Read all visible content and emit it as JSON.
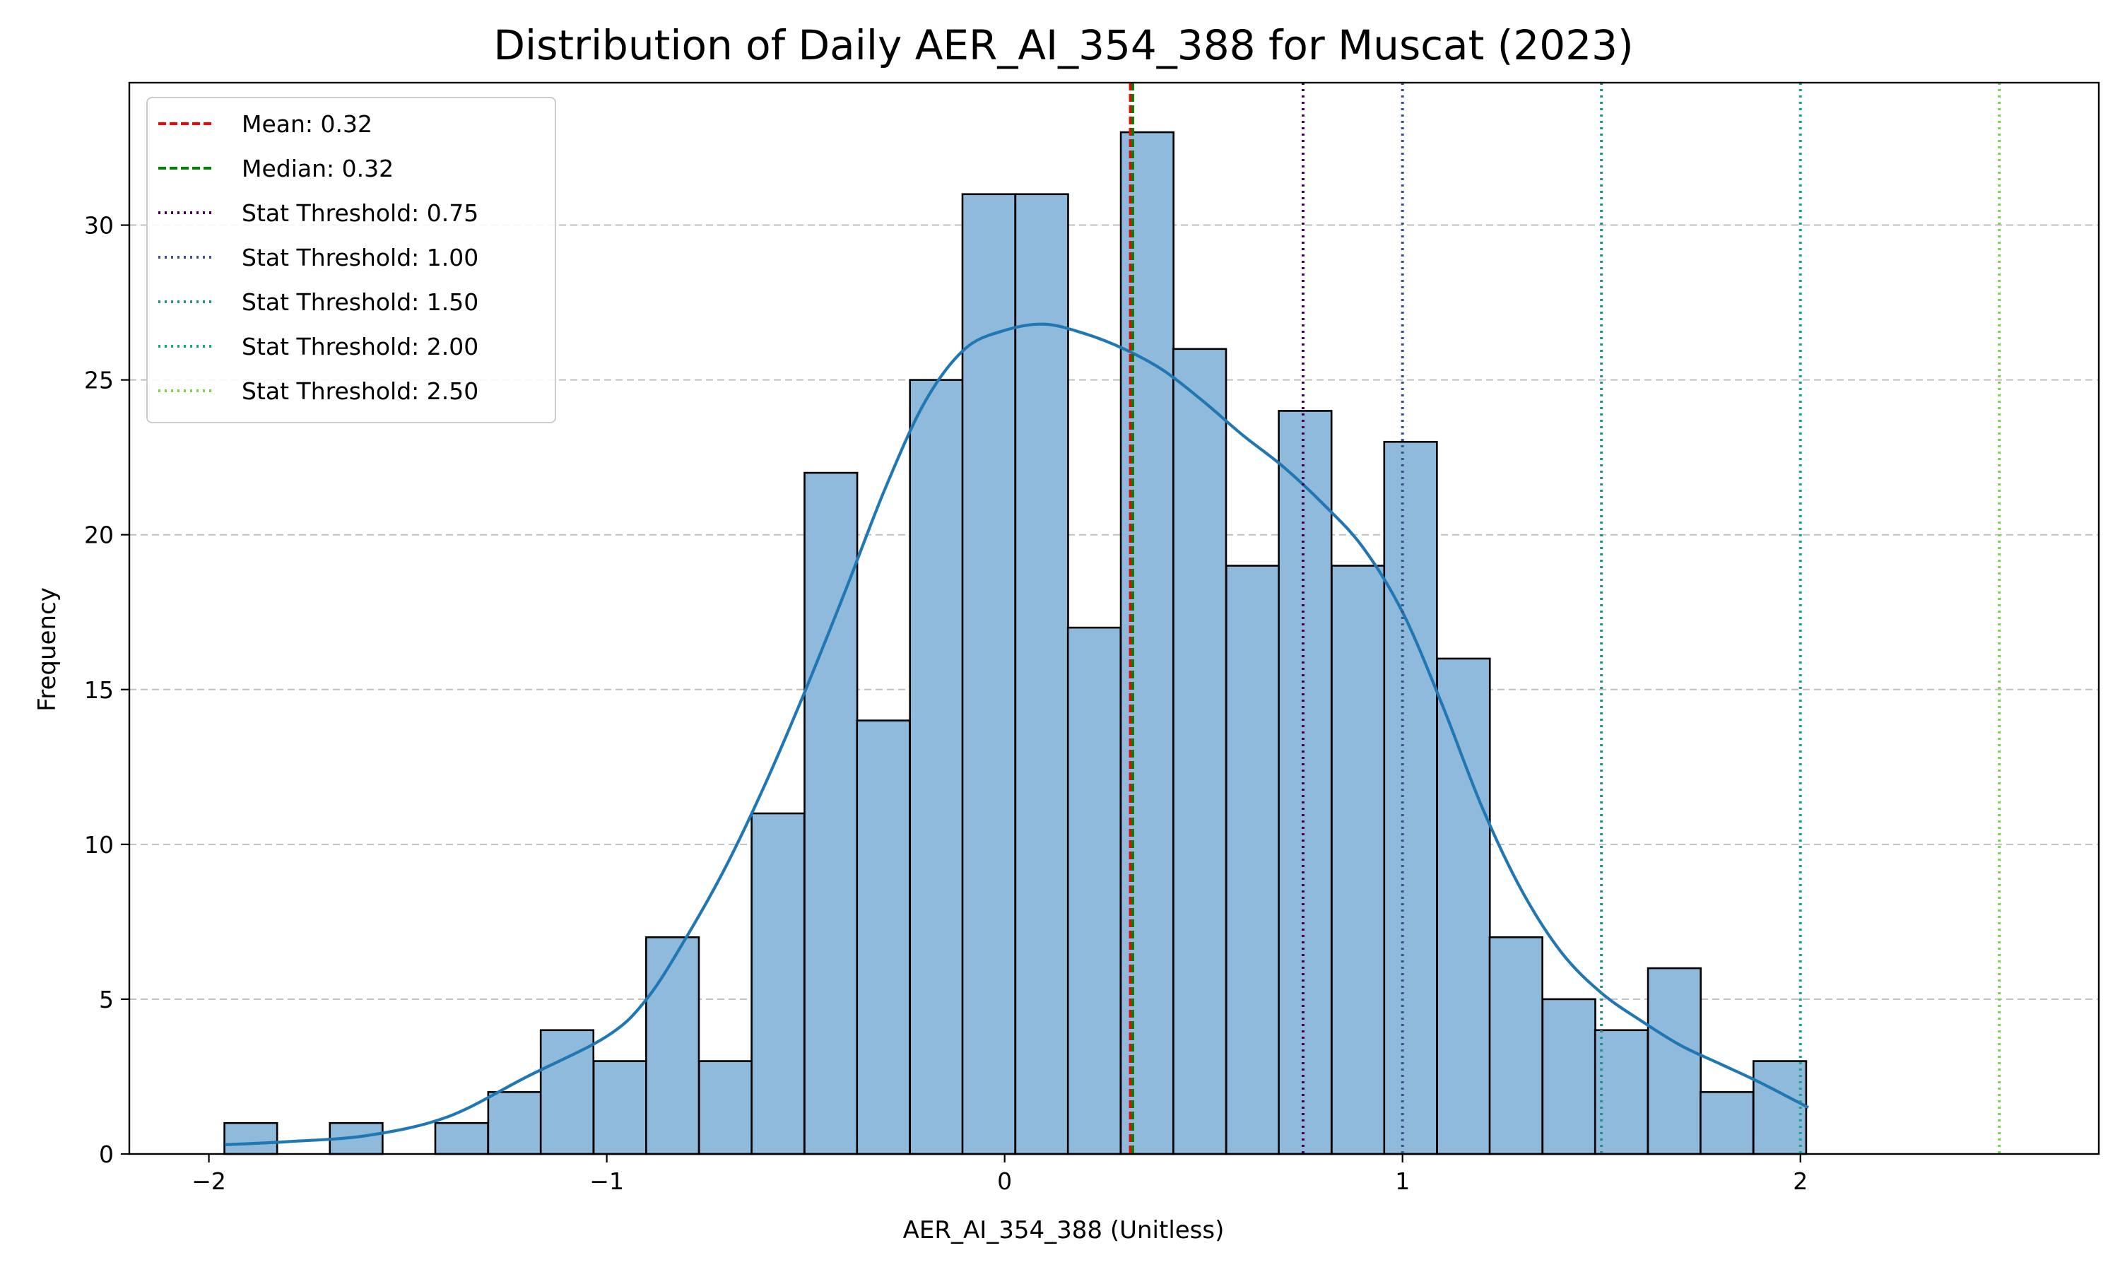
{
  "chart_data": {
    "type": "bar",
    "title": "Distribution of Daily AER_AI_354_388 for Muscat (2023)",
    "xlabel": "AER_AI_354_388 (Unitless)",
    "ylabel": "Frequency",
    "xlim": [
      -2.2,
      2.75
    ],
    "ylim": [
      0,
      34.6
    ],
    "xticks": [
      -2,
      -1,
      0,
      1,
      2
    ],
    "xtick_labels": [
      "−2",
      "−1",
      "0",
      "1",
      "2"
    ],
    "yticks": [
      0,
      5,
      10,
      15,
      20,
      25,
      30
    ],
    "ytick_labels": [
      "0",
      "5",
      "10",
      "15",
      "20",
      "25",
      "30"
    ],
    "grid": "y-dashed",
    "legend_position": "top-left",
    "bin_width": 0.1325,
    "bins": [
      {
        "start": -1.961,
        "count": 1
      },
      {
        "start": -1.828,
        "count": 0
      },
      {
        "start": -1.696,
        "count": 1
      },
      {
        "start": -1.563,
        "count": 0
      },
      {
        "start": -1.431,
        "count": 1
      },
      {
        "start": -1.298,
        "count": 2
      },
      {
        "start": -1.166,
        "count": 4
      },
      {
        "start": -1.033,
        "count": 3
      },
      {
        "start": -0.901,
        "count": 7
      },
      {
        "start": -0.768,
        "count": 3
      },
      {
        "start": -0.636,
        "count": 11
      },
      {
        "start": -0.503,
        "count": 22
      },
      {
        "start": -0.371,
        "count": 14
      },
      {
        "start": -0.238,
        "count": 25
      },
      {
        "start": -0.106,
        "count": 31
      },
      {
        "start": 0.027,
        "count": 31
      },
      {
        "start": 0.159,
        "count": 17
      },
      {
        "start": 0.292,
        "count": 33
      },
      {
        "start": 0.424,
        "count": 26
      },
      {
        "start": 0.557,
        "count": 19
      },
      {
        "start": 0.689,
        "count": 24
      },
      {
        "start": 0.822,
        "count": 19
      },
      {
        "start": 0.954,
        "count": 23
      },
      {
        "start": 1.087,
        "count": 16
      },
      {
        "start": 1.219,
        "count": 7
      },
      {
        "start": 1.352,
        "count": 5
      },
      {
        "start": 1.484,
        "count": 4
      },
      {
        "start": 1.617,
        "count": 6
      },
      {
        "start": 1.749,
        "count": 2
      },
      {
        "start": 1.882,
        "count": 3
      }
    ],
    "bar_color": "#8fbadb",
    "bar_edge_color": "#000000",
    "kde": {
      "color": "#1f77b4",
      "x": [
        -1.96,
        -1.8,
        -1.6,
        -1.4,
        -1.2,
        -1.0,
        -0.9,
        -0.8,
        -0.7,
        -0.6,
        -0.5,
        -0.4,
        -0.3,
        -0.2,
        -0.1,
        0.0,
        0.1,
        0.2,
        0.3,
        0.4,
        0.5,
        0.6,
        0.7,
        0.8,
        0.9,
        1.0,
        1.1,
        1.2,
        1.3,
        1.4,
        1.5,
        1.6,
        1.7,
        1.8,
        1.9,
        2.02
      ],
      "y": [
        0.3,
        0.4,
        0.6,
        1.2,
        2.5,
        3.8,
        5.0,
        7.0,
        9.3,
        12.0,
        15.0,
        18.2,
        21.5,
        24.3,
        26.0,
        26.6,
        26.8,
        26.5,
        26.0,
        25.3,
        24.3,
        23.2,
        22.2,
        21.0,
        19.6,
        17.5,
        14.5,
        11.2,
        8.5,
        6.5,
        5.2,
        4.3,
        3.5,
        2.9,
        2.3,
        1.5
      ]
    },
    "reference_lines": [
      {
        "label": "Mean: 0.32",
        "x": 0.316,
        "color": "#ff0000",
        "style": "dashed"
      },
      {
        "label": "Median: 0.32",
        "x": 0.322,
        "color": "#008000",
        "style": "dashed"
      },
      {
        "label": "Stat Threshold: 0.75",
        "x": 0.75,
        "color": "#440154",
        "style": "dotted"
      },
      {
        "label": "Stat Threshold: 1.00",
        "x": 1.0,
        "color": "#3b528b",
        "style": "dotted"
      },
      {
        "label": "Stat Threshold: 1.50",
        "x": 1.5,
        "color": "#21918c",
        "style": "dotted"
      },
      {
        "label": "Stat Threshold: 2.00",
        "x": 2.0,
        "color": "#1fa187",
        "style": "dotted"
      },
      {
        "label": "Stat Threshold: 2.50",
        "x": 2.5,
        "color": "#7ad151",
        "style": "dotted"
      }
    ]
  }
}
